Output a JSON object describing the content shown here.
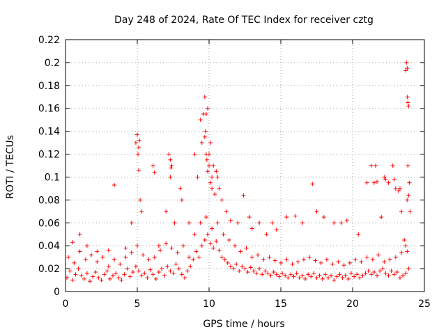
{
  "chart_data": {
    "type": "scatter",
    "title": "Day 248 of 2024, Rate Of TEC Index for receiver cztg",
    "xlabel": "GPS time / hours",
    "ylabel": "ROTI / TECUs",
    "xlim": [
      0,
      25
    ],
    "ylim": [
      0,
      0.22
    ],
    "xticks": [
      0,
      5,
      10,
      15,
      20,
      25
    ],
    "yticks": [
      0,
      0.02,
      0.04,
      0.06,
      0.08,
      0.1,
      0.12,
      0.14,
      0.16,
      0.18,
      0.2,
      0.22
    ],
    "xtick_labels": [
      "0",
      "5",
      "10",
      "15",
      "20",
      "25"
    ],
    "ytick_labels": [
      "0",
      "0.02",
      "0.04",
      "0.06",
      "0.08",
      "0.1",
      "0.12",
      "0.14",
      "0.16",
      "0.18",
      "0.2",
      "0.22"
    ],
    "grid": true,
    "marker": "+",
    "series": [
      {
        "name": "ROTI",
        "color": "#ff0000",
        "x": [
          0.1,
          0.3,
          0.5,
          0.7,
          0.9,
          1.1,
          1.3,
          1.5,
          1.7,
          1.9,
          2.1,
          2.3,
          2.5,
          2.7,
          2.9,
          3.1,
          3.3,
          3.5,
          3.7,
          3.9,
          4.1,
          4.3,
          4.5,
          4.7,
          4.9,
          5.1,
          5.3,
          5.5,
          5.7,
          5.9,
          6.1,
          6.3,
          6.5,
          6.7,
          6.9,
          7.1,
          7.3,
          7.5,
          7.7,
          7.9,
          8.1,
          8.3,
          8.5,
          8.7,
          8.9,
          9.1,
          9.3,
          9.5,
          9.7,
          9.9,
          10.1,
          10.3,
          10.5,
          10.7,
          10.9,
          11.1,
          11.3,
          11.5,
          11.7,
          11.9,
          12.1,
          12.3,
          12.5,
          12.7,
          12.9,
          13.1,
          13.3,
          13.5,
          13.7,
          13.9,
          14.1,
          14.3,
          14.5,
          14.7,
          14.9,
          15.1,
          15.3,
          15.5,
          15.7,
          15.9,
          16.1,
          16.3,
          16.5,
          16.7,
          16.9,
          17.1,
          17.3,
          17.5,
          17.7,
          17.9,
          18.1,
          18.3,
          18.5,
          18.7,
          18.9,
          19.1,
          19.3,
          19.5,
          19.7,
          19.9,
          20.1,
          20.3,
          20.5,
          20.7,
          20.9,
          21.1,
          21.3,
          21.5,
          21.7,
          21.9,
          22.1,
          22.3,
          22.5,
          22.7,
          22.9,
          23.1,
          23.3,
          23.5,
          23.7,
          23.9,
          0.2,
          0.6,
          1.0,
          1.4,
          1.8,
          2.2,
          2.6,
          3.0,
          3.4,
          3.8,
          4.2,
          4.6,
          5.0,
          5.4,
          5.8,
          6.2,
          6.6,
          7.0,
          7.4,
          7.8,
          8.2,
          8.6,
          9.0,
          9.4,
          9.8,
          10.2,
          10.6,
          11.0,
          11.4,
          11.8,
          12.2,
          12.6,
          13.0,
          13.4,
          13.8,
          14.2,
          14.6,
          15.0,
          15.4,
          15.8,
          16.2,
          16.6,
          17.0,
          17.4,
          17.8,
          18.2,
          18.6,
          19.0,
          19.4,
          19.8,
          20.2,
          20.6,
          21.0,
          21.4,
          21.8,
          22.2,
          22.6,
          23.0,
          23.4,
          23.8,
          0.5,
          1.0,
          1.5,
          2.2,
          3.0,
          3.4,
          4.2,
          4.6,
          4.9,
          5.0,
          5.05,
          5.1,
          5.2,
          5.3,
          6.1,
          6.2,
          6.5,
          7.0,
          7.2,
          7.3,
          7.4,
          7.6,
          8.0,
          8.1,
          8.6,
          9.0,
          9.2,
          9.4,
          9.5,
          9.6,
          9.7,
          9.8,
          9.9,
          10.0,
          10.1,
          10.2,
          10.3,
          10.5,
          10.7,
          10.9,
          11.2,
          11.5,
          12.0,
          12.4,
          12.8,
          13.0,
          13.5,
          14.0,
          14.4,
          14.7,
          15.4,
          16.0,
          16.5,
          17.2,
          17.5,
          18.0,
          18.7,
          19.2,
          19.6,
          20.4,
          21.0,
          21.3,
          21.5,
          21.6,
          22.0,
          22.2,
          22.5,
          22.8,
          23.0,
          23.2,
          23.4,
          23.6,
          23.7,
          23.8,
          23.85,
          23.9,
          23.95,
          24.0,
          9.7,
          9.75,
          9.8,
          9.85,
          9.9,
          10.0,
          10.1,
          10.2,
          10.4,
          10.6,
          23.7,
          23.75,
          23.8,
          23.82,
          23.85,
          23.9,
          5.1,
          5.15,
          7.3,
          7.35,
          21.7,
          22.3,
          22.9,
          23.3
        ],
        "y": [
          0.012,
          0.018,
          0.01,
          0.015,
          0.02,
          0.014,
          0.011,
          0.016,
          0.009,
          0.013,
          0.017,
          0.012,
          0.01,
          0.015,
          0.018,
          0.011,
          0.014,
          0.016,
          0.012,
          0.01,
          0.015,
          0.02,
          0.013,
          0.017,
          0.022,
          0.018,
          0.014,
          0.016,
          0.012,
          0.019,
          0.015,
          0.011,
          0.017,
          0.02,
          0.014,
          0.022,
          0.018,
          0.016,
          0.024,
          0.02,
          0.015,
          0.012,
          0.018,
          0.022,
          0.028,
          0.035,
          0.03,
          0.04,
          0.045,
          0.05,
          0.042,
          0.038,
          0.044,
          0.036,
          0.03,
          0.028,
          0.025,
          0.022,
          0.02,
          0.024,
          0.018,
          0.022,
          0.02,
          0.017,
          0.021,
          0.018,
          0.016,
          0.02,
          0.015,
          0.018,
          0.016,
          0.014,
          0.017,
          0.015,
          0.013,
          0.016,
          0.014,
          0.012,
          0.015,
          0.013,
          0.016,
          0.012,
          0.014,
          0.011,
          0.015,
          0.013,
          0.016,
          0.012,
          0.014,
          0.011,
          0.015,
          0.012,
          0.014,
          0.01,
          0.013,
          0.015,
          0.012,
          0.014,
          0.011,
          0.016,
          0.013,
          0.015,
          0.012,
          0.014,
          0.016,
          0.018,
          0.015,
          0.017,
          0.014,
          0.018,
          0.02,
          0.016,
          0.014,
          0.018,
          0.015,
          0.017,
          0.012,
          0.014,
          0.016,
          0.02,
          0.03,
          0.025,
          0.035,
          0.028,
          0.032,
          0.026,
          0.03,
          0.022,
          0.028,
          0.024,
          0.03,
          0.034,
          0.04,
          0.032,
          0.028,
          0.03,
          0.036,
          0.042,
          0.038,
          0.034,
          0.04,
          0.03,
          0.05,
          0.06,
          0.065,
          0.055,
          0.06,
          0.05,
          0.045,
          0.04,
          0.035,
          0.038,
          0.03,
          0.032,
          0.028,
          0.03,
          0.027,
          0.025,
          0.028,
          0.024,
          0.026,
          0.028,
          0.03,
          0.027,
          0.025,
          0.028,
          0.024,
          0.026,
          0.023,
          0.025,
          0.028,
          0.026,
          0.03,
          0.028,
          0.032,
          0.026,
          0.028,
          0.03,
          0.034,
          0.035,
          0.043,
          0.05,
          0.04,
          0.035,
          0.036,
          0.093,
          0.038,
          0.06,
          0.13,
          0.137,
          0.12,
          0.106,
          0.08,
          0.07,
          0.11,
          0.104,
          0.04,
          0.07,
          0.12,
          0.1,
          0.11,
          0.06,
          0.09,
          0.08,
          0.06,
          0.12,
          0.1,
          0.15,
          0.13,
          0.155,
          0.17,
          0.155,
          0.16,
          0.11,
          0.13,
          0.1,
          0.11,
          0.105,
          0.09,
          0.08,
          0.07,
          0.062,
          0.06,
          0.084,
          0.065,
          0.055,
          0.06,
          0.05,
          0.06,
          0.054,
          0.065,
          0.066,
          0.06,
          0.094,
          0.07,
          0.065,
          0.06,
          0.06,
          0.062,
          0.05,
          0.095,
          0.11,
          0.095,
          0.11,
          0.065,
          0.1,
          0.095,
          0.11,
          0.09,
          0.088,
          0.07,
          0.045,
          0.04,
          0.08,
          0.11,
          0.084,
          0.095,
          0.07,
          0.135,
          0.14,
          0.12,
          0.115,
          0.105,
          0.12,
          0.095,
          0.09,
          0.085,
          0.1,
          0.193,
          0.2,
          0.195,
          0.17,
          0.165,
          0.162,
          0.126,
          0.132,
          0.115,
          0.108,
          0.096,
          0.098,
          0.098,
          0.09
        ]
      }
    ]
  }
}
